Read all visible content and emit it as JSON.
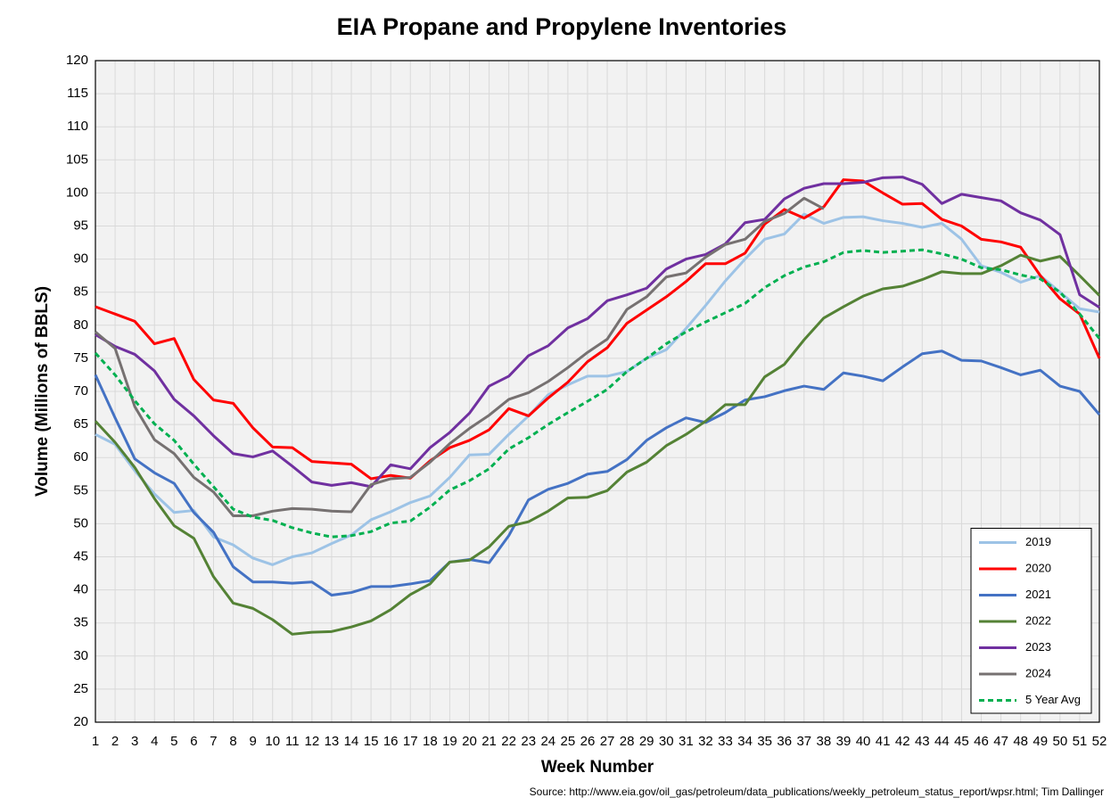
{
  "chart_data": {
    "type": "line",
    "title": "EIA Propane and Propylene Inventories",
    "x_label": "Week Number",
    "y_label": "Volume (Millions of BBLS)",
    "source": "Source: http://www.eia.gov/oil_gas/petroleum/data_publications/weekly_petroleum_status_report/wpsr.html; Tim Dallinger",
    "x": [
      1,
      2,
      3,
      4,
      5,
      6,
      7,
      8,
      9,
      10,
      11,
      12,
      13,
      14,
      15,
      16,
      17,
      18,
      19,
      20,
      21,
      22,
      23,
      24,
      25,
      26,
      27,
      28,
      29,
      30,
      31,
      32,
      33,
      34,
      35,
      36,
      37,
      38,
      39,
      40,
      41,
      42,
      43,
      44,
      45,
      46,
      47,
      48,
      49,
      50,
      51,
      52
    ],
    "xlim": [
      1,
      52
    ],
    "xticks": [
      1,
      2,
      3,
      4,
      5,
      6,
      7,
      8,
      9,
      10,
      11,
      12,
      13,
      14,
      15,
      16,
      17,
      18,
      19,
      20,
      21,
      22,
      23,
      24,
      25,
      26,
      27,
      28,
      29,
      30,
      31,
      32,
      33,
      34,
      35,
      36,
      37,
      38,
      39,
      40,
      41,
      42,
      43,
      44,
      45,
      46,
      47,
      48,
      49,
      50,
      51,
      52
    ],
    "ylim": [
      20,
      120
    ],
    "yticks": [
      20,
      25,
      30,
      35,
      40,
      45,
      50,
      55,
      60,
      65,
      70,
      75,
      80,
      85,
      90,
      95,
      100,
      105,
      110,
      115,
      120
    ],
    "grid": true,
    "legend": "lower right",
    "series": [
      {
        "name": "2019",
        "color": "#9dc3e6",
        "dashed": false,
        "values": [
          63.5,
          62,
          58,
          54.5,
          51.7,
          52,
          48,
          46.8,
          44.8,
          43.8,
          45,
          45.6,
          47,
          48.3,
          50.6,
          51.8,
          53.2,
          54.2,
          57,
          60.4,
          60.5,
          63.5,
          66.3,
          69.5,
          71,
          72.3,
          72.3,
          73,
          75,
          76.3,
          79.5,
          83,
          86.7,
          90,
          93,
          93.8,
          96.8,
          95.4,
          96.3,
          96.4,
          95.8,
          95.4,
          94.8,
          95.4,
          93,
          89,
          88,
          86.5,
          87.5,
          85,
          82.5,
          82
        ]
      },
      {
        "name": "2020",
        "color": "#ff0000",
        "dashed": false,
        "values": [
          82.8,
          81.7,
          80.6,
          77.2,
          78,
          71.8,
          68.7,
          68.2,
          64.5,
          61.6,
          61.5,
          59.4,
          59.2,
          59,
          56.8,
          57.3,
          56.9,
          59.5,
          61.5,
          62.6,
          64.2,
          67.4,
          66.3,
          69,
          71.4,
          74.5,
          76.6,
          80.3,
          82.3,
          84.3,
          86.6,
          89.3,
          89.3,
          90.9,
          95.3,
          97.5,
          96.2,
          97.9,
          102,
          101.8,
          100,
          98.3,
          98.4,
          96,
          95,
          93,
          92.6,
          91.8,
          87.5,
          84,
          81.7,
          75
        ]
      },
      {
        "name": "2021",
        "color": "#4472c4",
        "dashed": false,
        "values": [
          72.5,
          66,
          59.8,
          57.7,
          56.1,
          51.7,
          48.7,
          43.5,
          41.2,
          41.2,
          41,
          41.2,
          39.2,
          39.6,
          40.5,
          40.5,
          40.9,
          41.4,
          44.2,
          44.6,
          44.1,
          48.2,
          53.6,
          55.2,
          56.1,
          57.5,
          57.9,
          59.7,
          62.6,
          64.5,
          66,
          65.3,
          66.8,
          68.7,
          69.2,
          70.1,
          70.8,
          70.3,
          72.8,
          72.3,
          71.6,
          73.7,
          75.7,
          76.1,
          74.7,
          74.6,
          73.6,
          72.5,
          73.2,
          70.8,
          70,
          66.5
        ]
      },
      {
        "name": "2022",
        "color": "#548235",
        "dashed": false,
        "values": [
          65.5,
          62.3,
          58.5,
          53.8,
          49.7,
          47.8,
          42,
          38,
          37.2,
          35.5,
          33.3,
          33.6,
          33.7,
          34.4,
          35.3,
          37,
          39.3,
          40.9,
          44.2,
          44.5,
          46.5,
          49.6,
          50.3,
          51.9,
          53.9,
          54,
          55,
          57.8,
          59.3,
          61.8,
          63.5,
          65.5,
          68,
          68,
          72.2,
          74.1,
          77.8,
          81.1,
          82.8,
          84.4,
          85.5,
          85.9,
          86.9,
          88.1,
          87.8,
          87.8,
          89,
          90.6,
          89.7,
          90.4,
          87.5,
          84.5
        ]
      },
      {
        "name": "2023",
        "color": "#7030a0",
        "dashed": false,
        "values": [
          78.6,
          76.8,
          75.6,
          73.1,
          68.8,
          66.3,
          63.3,
          60.6,
          60.1,
          61,
          58.7,
          56.3,
          55.8,
          56.2,
          55.6,
          58.9,
          58.3,
          61.5,
          63.8,
          66.7,
          70.8,
          72.3,
          75.4,
          76.9,
          79.6,
          81,
          83.7,
          84.6,
          85.6,
          88.5,
          90,
          90.7,
          92.3,
          95.5,
          96,
          99.1,
          100.7,
          101.4,
          101.4,
          101.6,
          102.3,
          102.4,
          101.3,
          98.4,
          99.8,
          99.3,
          98.8,
          97,
          95.9,
          93.7,
          84.6,
          82.7
        ]
      },
      {
        "name": "2024",
        "color": "#767171",
        "dashed": false,
        "values": [
          79,
          76.5,
          67.7,
          62.7,
          60.6,
          57,
          54.8,
          51.2,
          51.2,
          51.9,
          52.3,
          52.2,
          51.9,
          51.8,
          55.9,
          56.8,
          57,
          59.3,
          62.1,
          64.4,
          66.4,
          68.8,
          69.8,
          71.5,
          73.6,
          75.9,
          77.9,
          82.4,
          84.3,
          87.3,
          87.9,
          90.3,
          92.2,
          93,
          95.7,
          96.9,
          99.2,
          97.6,
          null,
          null,
          null,
          null,
          null,
          null,
          null,
          null,
          null,
          null,
          null,
          null,
          null,
          null
        ]
      },
      {
        "name": "5 Year Avg",
        "color": "#00b050",
        "dashed": true,
        "values": [
          75.8,
          72.5,
          68.6,
          65.1,
          62.6,
          59,
          55.6,
          52.2,
          51,
          50.5,
          49.4,
          48.6,
          48,
          48.2,
          48.8,
          50.1,
          50.4,
          52.5,
          55.1,
          56.5,
          58.3,
          61.3,
          63,
          65,
          66.8,
          68.5,
          70.3,
          73,
          75,
          77.2,
          79,
          80.5,
          81.9,
          83.3,
          85.7,
          87.5,
          88.8,
          89.6,
          91,
          91.3,
          91,
          91.2,
          91.4,
          90.8,
          90,
          88.7,
          88.4,
          87.6,
          87,
          85,
          81.7,
          78
        ]
      }
    ]
  }
}
